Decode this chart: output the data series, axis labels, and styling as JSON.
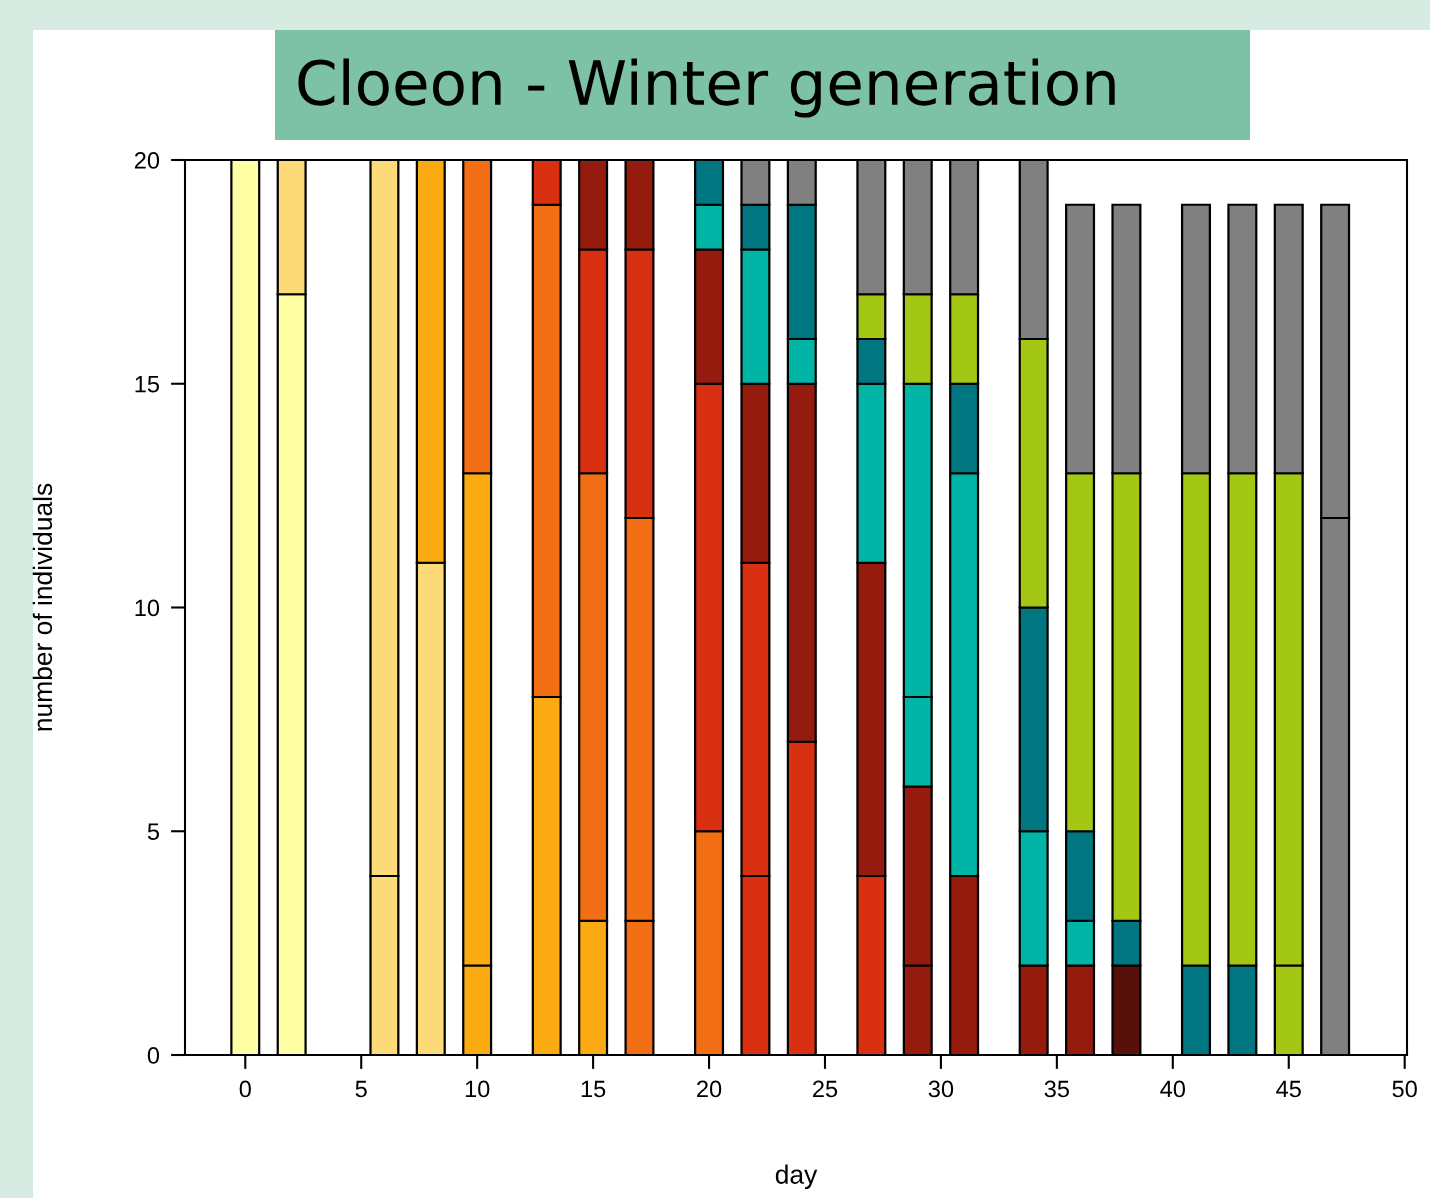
{
  "chart_data": {
    "type": "bar",
    "stacked": true,
    "title": "Cloeon - Winter generation",
    "xlabel": "day",
    "ylabel": "number of individuals",
    "x": [
      0,
      2,
      6,
      8,
      10,
      13,
      15,
      17,
      20,
      22,
      24,
      27,
      29,
      31,
      34,
      36,
      38,
      41,
      43,
      45,
      47
    ],
    "series": [
      {
        "color": "#ffffa6",
        "values": [
          20,
          17,
          null,
          null,
          null,
          null,
          null,
          null,
          null,
          null,
          null,
          null,
          null,
          null,
          null,
          null,
          null,
          null,
          null,
          null,
          null
        ]
      },
      {
        "color": "#fdda78",
        "values": [
          null,
          null,
          4,
          null,
          null,
          null,
          null,
          null,
          null,
          null,
          null,
          null,
          null,
          null,
          null,
          null,
          null,
          null,
          null,
          null,
          null
        ]
      },
      {
        "color": "#fdda78",
        "values": [
          null,
          3,
          16,
          11,
          null,
          null,
          null,
          null,
          null,
          null,
          null,
          null,
          null,
          null,
          null,
          null,
          null,
          null,
          null,
          null,
          null
        ]
      },
      {
        "color": "#fbaa12",
        "values": [
          null,
          null,
          null,
          null,
          2,
          null,
          null,
          null,
          null,
          null,
          null,
          null,
          null,
          null,
          null,
          null,
          null,
          null,
          null,
          null,
          null
        ]
      },
      {
        "color": "#fbaa12",
        "values": [
          null,
          null,
          null,
          9,
          11,
          8,
          3,
          null,
          null,
          null,
          null,
          null,
          null,
          null,
          null,
          null,
          null,
          null,
          null,
          null,
          null
        ]
      },
      {
        "color": "#f26e15",
        "values": [
          null,
          null,
          null,
          null,
          null,
          null,
          null,
          3,
          null,
          null,
          null,
          null,
          null,
          null,
          null,
          null,
          null,
          null,
          null,
          null,
          null
        ]
      },
      {
        "color": "#f26e15",
        "values": [
          null,
          null,
          null,
          null,
          7,
          11,
          10,
          9,
          5,
          null,
          null,
          null,
          null,
          null,
          null,
          null,
          null,
          null,
          null,
          null,
          null
        ]
      },
      {
        "color": "#d93012",
        "values": [
          null,
          null,
          null,
          null,
          null,
          null,
          null,
          null,
          null,
          4,
          null,
          null,
          null,
          null,
          null,
          null,
          null,
          null,
          null,
          null,
          null
        ]
      },
      {
        "color": "#d93012",
        "values": [
          null,
          null,
          null,
          null,
          null,
          1,
          5,
          6,
          10,
          7,
          7,
          4,
          null,
          null,
          null,
          null,
          null,
          null,
          null,
          null,
          null
        ]
      },
      {
        "color": "#951b0e",
        "values": [
          null,
          null,
          null,
          null,
          null,
          null,
          null,
          null,
          null,
          null,
          null,
          null,
          2,
          null,
          null,
          null,
          null,
          null,
          null,
          null,
          null
        ]
      },
      {
        "color": "#951b0e",
        "values": [
          null,
          null,
          null,
          null,
          null,
          null,
          2,
          2,
          3,
          4,
          8,
          7,
          4,
          4,
          2,
          2,
          null,
          null,
          null,
          null,
          null
        ]
      },
      {
        "color": "#58100a",
        "values": [
          null,
          null,
          null,
          null,
          null,
          null,
          null,
          null,
          null,
          null,
          null,
          null,
          null,
          null,
          null,
          null,
          2,
          null,
          null,
          null,
          null
        ]
      },
      {
        "color": "#00b5a5",
        "values": [
          null,
          null,
          null,
          null,
          null,
          null,
          null,
          null,
          null,
          null,
          null,
          null,
          2,
          null,
          null,
          null,
          null,
          null,
          null,
          null,
          null
        ]
      },
      {
        "color": "#00b5a5",
        "values": [
          null,
          null,
          null,
          null,
          null,
          null,
          null,
          null,
          1,
          3,
          1,
          4,
          7,
          9,
          3,
          1,
          null,
          null,
          null,
          null,
          null
        ]
      },
      {
        "color": "#007780",
        "values": [
          null,
          null,
          null,
          null,
          null,
          null,
          null,
          null,
          1,
          1,
          3,
          1,
          null,
          2,
          5,
          2,
          1,
          2,
          2,
          null,
          null
        ]
      },
      {
        "color": "#a3c714",
        "values": [
          null,
          null,
          null,
          null,
          null,
          null,
          null,
          null,
          null,
          null,
          null,
          null,
          null,
          null,
          null,
          null,
          null,
          null,
          null,
          2,
          null
        ]
      },
      {
        "color": "#a3c714",
        "values": [
          null,
          null,
          null,
          null,
          null,
          null,
          null,
          null,
          null,
          null,
          null,
          1,
          2,
          2,
          6,
          8,
          10,
          11,
          11,
          11,
          null
        ]
      },
      {
        "color": "#808080",
        "values": [
          null,
          null,
          null,
          null,
          null,
          null,
          null,
          null,
          null,
          null,
          null,
          null,
          null,
          null,
          null,
          null,
          null,
          null,
          null,
          null,
          12
        ]
      },
      {
        "color": "#808080",
        "values": [
          null,
          null,
          null,
          null,
          null,
          null,
          null,
          null,
          null,
          1,
          1,
          3,
          3,
          3,
          4,
          6,
          6,
          6,
          6,
          6,
          7
        ]
      }
    ],
    "xlim": [
      -2.6,
      50.1
    ],
    "xticks": [
      0,
      5,
      10,
      15,
      20,
      25,
      30,
      35,
      40,
      45,
      50
    ],
    "ylim": [
      0,
      20
    ],
    "yticks": [
      0,
      5,
      10,
      15,
      20
    ],
    "grid": false,
    "legend": false
  }
}
